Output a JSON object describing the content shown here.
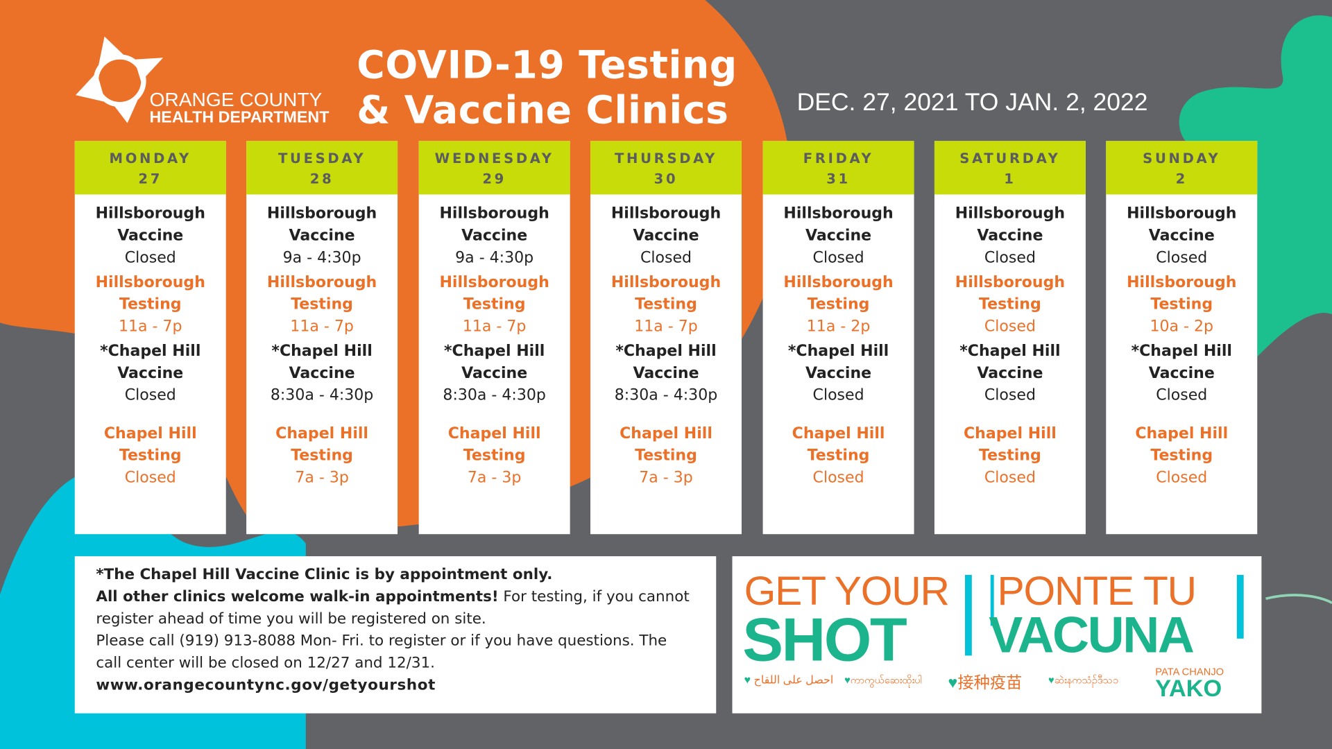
{
  "logo": {
    "line1": "ORANGE COUNTY",
    "line2": "HEALTH DEPARTMENT"
  },
  "title": {
    "line1": "COVID-19 Testing",
    "line2": "& Vaccine Clinics"
  },
  "date_range": "DEC. 27, 2021 TO JAN. 2, 2022",
  "labels": {
    "hillsborough": "Hillsborough",
    "vaccine": "Vaccine",
    "testing": "Testing",
    "chapel_hill_star": "*Chapel Hill",
    "chapel_hill": "Chapel Hill"
  },
  "days": [
    {
      "name": "MONDAY",
      "date": "27",
      "hv": "Closed",
      "ht": "11a - 7p",
      "cv": "Closed",
      "ct": "Closed"
    },
    {
      "name": "TUESDAY",
      "date": "28",
      "hv": "9a - 4:30p",
      "ht": "11a - 7p",
      "cv": "8:30a - 4:30p",
      "ct": "7a - 3p"
    },
    {
      "name": "WEDNESDAY",
      "date": "29",
      "hv": "9a - 4:30p",
      "ht": "11a - 7p",
      "cv": "8:30a - 4:30p",
      "ct": "7a - 3p"
    },
    {
      "name": "THURSDAY",
      "date": "30",
      "hv": "Closed",
      "ht": "11a - 7p",
      "cv": "8:30a - 4:30p",
      "ct": "7a - 3p"
    },
    {
      "name": "FRIDAY",
      "date": "31",
      "hv": "Closed",
      "ht": "11a - 2p",
      "cv": "Closed",
      "ct": "Closed"
    },
    {
      "name": "SATURDAY",
      "date": "1",
      "hv": "Closed",
      "ht": "Closed",
      "cv": "Closed",
      "ct": "Closed"
    },
    {
      "name": "SUNDAY",
      "date": "2",
      "hv": "Closed",
      "ht": "10a - 2p",
      "cv": "Closed",
      "ct": "Closed"
    }
  ],
  "note": {
    "line1": "*The Chapel Hill Vaccine Clinic is by appointment only.",
    "line2_bold": "All other clinics welcome walk-in appointments!",
    "line2_rest": " For testing, if you cannot register ahead of time you will be registered on site.",
    "line3": "Please call (919) 913-8088 Mon- Fri. to register or if you have questions. The call center will be closed on 12/27 and 12/31.",
    "url": "www.orangecountync.gov/getyourshot"
  },
  "campaign": {
    "get_your": "GET YOUR",
    "shot": "SHOT",
    "ponte_tu": "PONTE TU",
    "vacuna": "VACUNA",
    "arabic": "احصل على اللقاح",
    "burmese": "ကာကွယ်ဆေးထိုးပါ",
    "chinese": "接种疫苗",
    "karen": "ဆဲးနကသံၣ်ဒီသ၁",
    "pata_chanjo": "PATA CHANJO",
    "yako": "YAKO"
  },
  "colors": {
    "orange": "#ec7128",
    "gray": "#626366",
    "lime": "#c8dc0a",
    "green": "#1cb48c",
    "cyan": "#00c2da"
  }
}
